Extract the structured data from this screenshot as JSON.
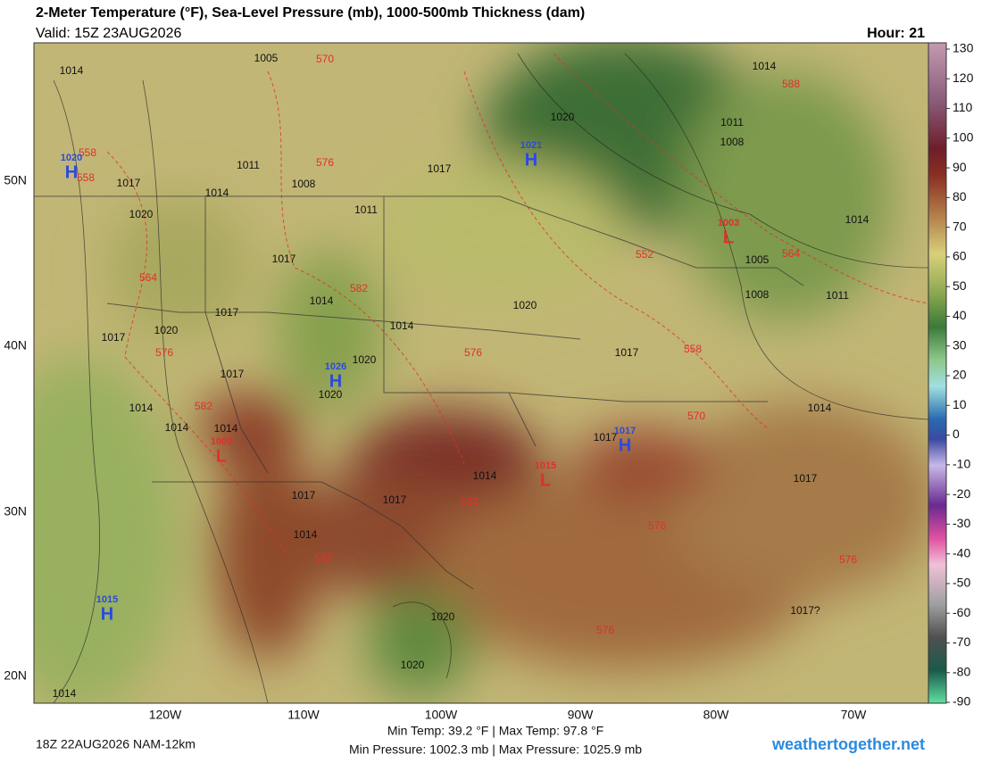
{
  "header": {
    "title": "2-Meter Temperature (°F), Sea-Level Pressure (mb), 1000-500mb Thickness (dam)",
    "valid": "Valid: 15Z 23AUG2026",
    "hour": "Hour: 21"
  },
  "colorbar": {
    "ticks": [
      130,
      120,
      110,
      100,
      90,
      80,
      70,
      60,
      50,
      40,
      30,
      20,
      10,
      0,
      -10,
      -20,
      -30,
      -40,
      -50,
      -60,
      -70,
      -80,
      -90
    ]
  },
  "lat_labels": [
    "50N",
    "40N",
    "30N",
    "20N"
  ],
  "lon_labels": [
    "120W",
    "110W",
    "100W",
    "90W",
    "80W",
    "70W"
  ],
  "isobar_labels": [
    "1014",
    "1005",
    "1011",
    "1008",
    "1014",
    "1020",
    "1011",
    "1017",
    "1014",
    "1017",
    "1020",
    "1017",
    "1017",
    "1020",
    "1020",
    "1014",
    "1020",
    "1017",
    "1014",
    "1014",
    "1014",
    "1017",
    "1017",
    "1014",
    "1014",
    "1020",
    "1020",
    "1014",
    "1017",
    "1014",
    "1017",
    "1017?",
    "1020",
    "1017",
    "1014",
    "1011",
    "1008",
    "1005",
    "1008",
    "1011",
    "1014",
    "1017"
  ],
  "thickness_labels": [
    "570",
    "588",
    "558",
    "558",
    "576",
    "564",
    "582",
    "576",
    "576",
    "582",
    "570",
    "558",
    "552",
    "564",
    "582",
    "576",
    "582",
    "576",
    "576"
  ],
  "centers": [
    {
      "symbol": "H",
      "pressure": "1020"
    },
    {
      "symbol": "H",
      "pressure": "1021"
    },
    {
      "symbol": "H",
      "pressure": "1026"
    },
    {
      "symbol": "H",
      "pressure": "1017"
    },
    {
      "symbol": "H",
      "pressure": "1015"
    },
    {
      "symbol": "L",
      "pressure": "1003"
    },
    {
      "symbol": "L",
      "pressure": "1009"
    },
    {
      "symbol": "L",
      "pressure": "1015"
    }
  ],
  "footer": {
    "run": "18Z 22AUG2026 NAM-12km",
    "temps": "Min Temp:  39.2 °F | Max Temp:  97.8 °F",
    "pressures": "Min Pressure: 1002.3 mb | Max Pressure: 1025.9 mb",
    "site": "weathertogether.net"
  }
}
